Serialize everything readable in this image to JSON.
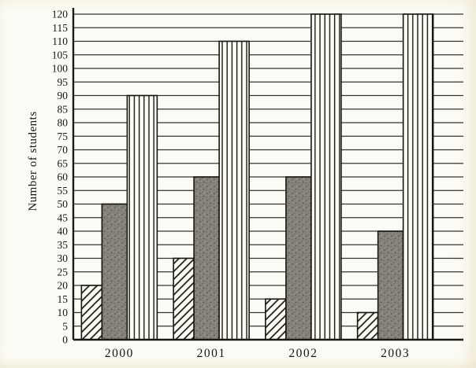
{
  "chart_data": {
    "type": "bar",
    "title": "",
    "ylabel": "Number of students",
    "xlabel": "",
    "ylim": [
      0,
      120
    ],
    "ytick_step": 5,
    "yticks": [
      0,
      5,
      10,
      15,
      20,
      25,
      30,
      35,
      40,
      45,
      50,
      55,
      60,
      65,
      70,
      75,
      80,
      85,
      90,
      95,
      100,
      105,
      110,
      115,
      120
    ],
    "categories": [
      "2000",
      "2001",
      "2002",
      "2003"
    ],
    "series": [
      {
        "name": "hatched",
        "pattern": "diagonal-hatch",
        "values": [
          20,
          30,
          15,
          10
        ]
      },
      {
        "name": "gray",
        "pattern": "gray-speckle",
        "values": [
          50,
          60,
          60,
          40
        ]
      },
      {
        "name": "striped",
        "pattern": "vertical-lines",
        "values": [
          90,
          110,
          120,
          120
        ]
      }
    ],
    "grid": "horizontal",
    "legend": "none"
  },
  "colors": {
    "ink": "#1c1a15",
    "paper": "#fcfcf6",
    "gray_bar": "#86847a",
    "gray_speckle_dark": "#54524a",
    "gray_speckle_light": "#a3a196"
  }
}
